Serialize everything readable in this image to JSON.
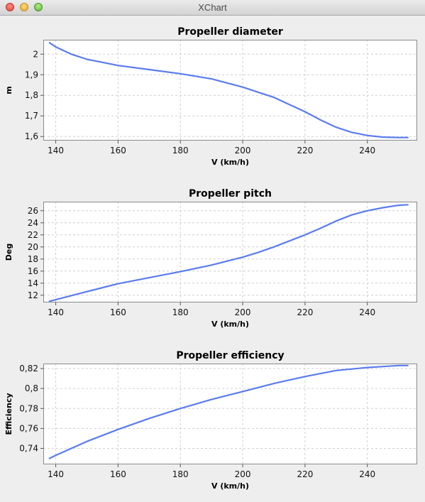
{
  "window": {
    "title": "XChart"
  },
  "colors": {
    "series": "#5b7cf0",
    "grid": "#cfcfcf",
    "plot_bg": "#ffffff",
    "panel_bg": "#eeeeee"
  },
  "chart_data": [
    {
      "type": "line",
      "title": "Propeller diameter",
      "xlabel": "V (km/h)",
      "ylabel": "m",
      "xlim": [
        136,
        256
      ],
      "ylim": [
        1.58,
        2.07
      ],
      "xticks": [
        140,
        160,
        180,
        200,
        220,
        240
      ],
      "xtick_labels": [
        "140",
        "160",
        "180",
        "200",
        "220",
        "240"
      ],
      "yticks": [
        1.6,
        1.7,
        1.8,
        1.9,
        2.0
      ],
      "ytick_labels": [
        "1,6",
        "1,7",
        "1,8",
        "1,9",
        "2"
      ],
      "grid": true,
      "legend": "none",
      "series": [
        {
          "x": [
            138,
            140,
            145,
            150,
            160,
            170,
            180,
            190,
            200,
            205,
            210,
            215,
            220,
            225,
            230,
            235,
            240,
            245,
            250,
            253
          ],
          "y": [
            2.055,
            2.035,
            2.0,
            1.975,
            1.945,
            1.925,
            1.905,
            1.88,
            1.84,
            1.815,
            1.79,
            1.755,
            1.72,
            1.68,
            1.645,
            1.62,
            1.605,
            1.597,
            1.595,
            1.595
          ]
        }
      ]
    },
    {
      "type": "line",
      "title": "Propeller pitch",
      "xlabel": "V (km/h)",
      "ylabel": "Deg",
      "xlim": [
        136,
        256
      ],
      "ylim": [
        10.8,
        27.5
      ],
      "xticks": [
        140,
        160,
        180,
        200,
        220,
        240
      ],
      "xtick_labels": [
        "140",
        "160",
        "180",
        "200",
        "220",
        "240"
      ],
      "yticks": [
        12,
        14,
        16,
        18,
        20,
        22,
        24,
        26
      ],
      "ytick_labels": [
        "12",
        "14",
        "16",
        "18",
        "20",
        "22",
        "24",
        "26"
      ],
      "grid": true,
      "legend": "none",
      "series": [
        {
          "x": [
            138,
            150,
            160,
            170,
            180,
            190,
            200,
            205,
            210,
            215,
            220,
            225,
            230,
            235,
            240,
            245,
            250,
            253
          ],
          "y": [
            11.0,
            12.6,
            13.9,
            14.9,
            15.9,
            17.0,
            18.3,
            19.1,
            20.0,
            21.0,
            22.0,
            23.1,
            24.3,
            25.3,
            26.0,
            26.5,
            26.9,
            27.0
          ]
        }
      ]
    },
    {
      "type": "line",
      "title": "Propeller efficiency",
      "xlabel": "V (km/h)",
      "ylabel": "Efficiency",
      "xlim": [
        136,
        256
      ],
      "ylim": [
        0.724,
        0.825
      ],
      "xticks": [
        140,
        160,
        180,
        200,
        220,
        240
      ],
      "xtick_labels": [
        "140",
        "160",
        "180",
        "200",
        "220",
        "240"
      ],
      "yticks": [
        0.74,
        0.76,
        0.78,
        0.8,
        0.82
      ],
      "ytick_labels": [
        "0,74",
        "0,76",
        "0,78",
        "0,8",
        "0,82"
      ],
      "grid": true,
      "legend": "none",
      "series": [
        {
          "x": [
            138,
            140,
            145,
            150,
            160,
            170,
            180,
            190,
            200,
            210,
            220,
            230,
            240,
            245,
            250,
            253
          ],
          "y": [
            0.73,
            0.733,
            0.74,
            0.747,
            0.759,
            0.77,
            0.78,
            0.789,
            0.797,
            0.805,
            0.812,
            0.818,
            0.821,
            0.822,
            0.823,
            0.823
          ]
        }
      ]
    }
  ]
}
